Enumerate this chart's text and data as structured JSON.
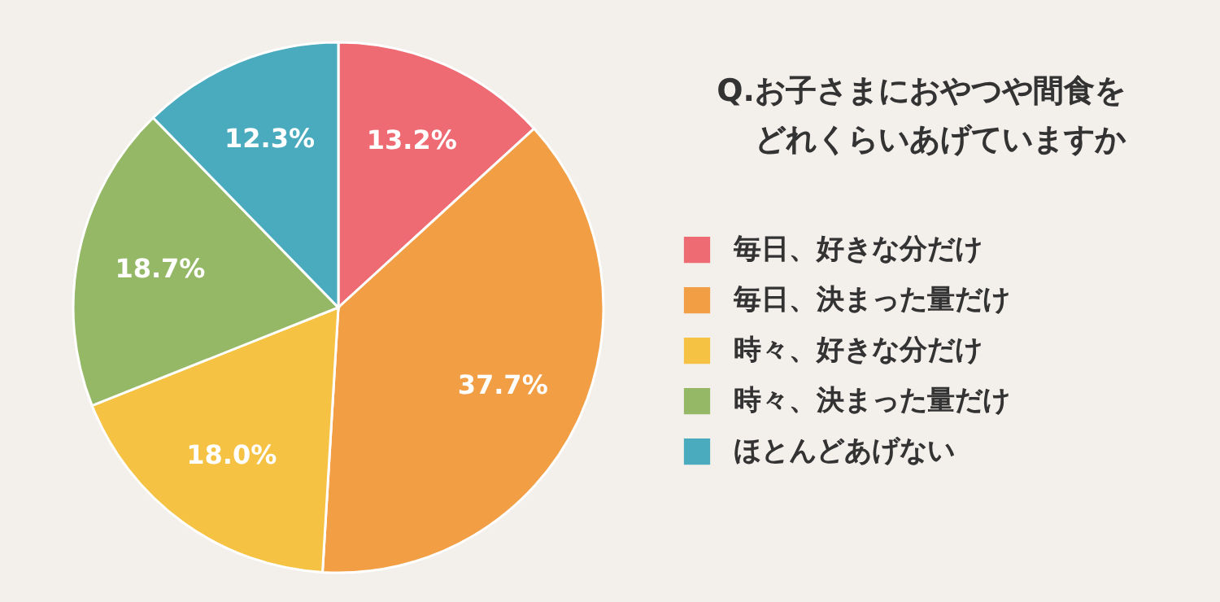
{
  "chart_data": {
    "type": "pie",
    "title": [
      "Q.お子さまにおやつや間食を",
      "どれくらいあげていますか"
    ],
    "categories": [
      "毎日、好きな分だけ",
      "毎日、決まった量だけ",
      "時々、好きな分だけ",
      "時々、決まった量だけ",
      "ほとんどあげない"
    ],
    "values": [
      13.2,
      37.7,
      18.0,
      18.7,
      12.3
    ],
    "value_labels": [
      "13.2%",
      "37.7%",
      "18.0%",
      "18.7%",
      "12.3%"
    ],
    "colors": [
      "#ef6b74",
      "#f29e45",
      "#f5c243",
      "#95b866",
      "#4aabbe"
    ],
    "legend": "right"
  }
}
